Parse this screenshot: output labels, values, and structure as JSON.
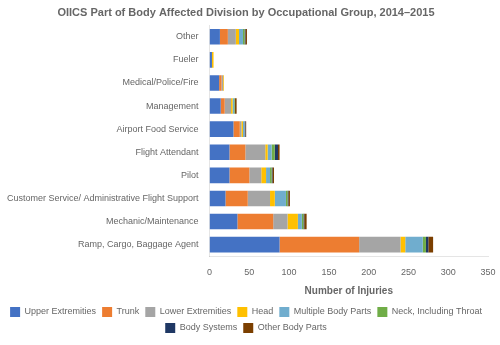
{
  "chart_data": {
    "type": "bar",
    "orientation": "horizontal",
    "stacked": true,
    "title": "OIICS Part of Body Affected Division by Occupational Group, 2014–2015",
    "xlabel": "Number of Injuries",
    "categories": [
      "Other",
      "Fueler",
      "Medical/Police/Fire",
      "Management",
      "Airport Food Service",
      "Flight Attendant",
      "Pilot",
      "Customer Service/ Administrative Flight Support",
      "Mechanic/Maintenance",
      "Ramp, Cargo, Baggage Agent"
    ],
    "series": [
      {
        "name": "Upper Extremities",
        "color": "#4472C4",
        "values": [
          13,
          3,
          12,
          14,
          30,
          25,
          25,
          20,
          35,
          88
        ]
      },
      {
        "name": "Trunk",
        "color": "#ED7D31",
        "values": [
          10,
          0,
          3,
          5,
          8,
          20,
          25,
          28,
          45,
          100
        ]
      },
      {
        "name": "Lower Extremities",
        "color": "#A5A5A5",
        "values": [
          10,
          0,
          2,
          8,
          2,
          25,
          15,
          28,
          18,
          52
        ]
      },
      {
        "name": "Head",
        "color": "#FFC000",
        "values": [
          4,
          2,
          1,
          2,
          2,
          3,
          6,
          6,
          13,
          6
        ]
      },
      {
        "name": "Multiple Body Parts",
        "color": "#70ADCE",
        "values": [
          5,
          0,
          0,
          2,
          2,
          5,
          5,
          14,
          5,
          22
        ]
      },
      {
        "name": "Neck, Including Throat",
        "color": "#70AD47",
        "values": [
          2,
          0,
          0,
          1,
          0,
          4,
          2,
          2,
          2,
          4
        ]
      },
      {
        "name": "Body Systems",
        "color": "#1F3864",
        "values": [
          1,
          0,
          0,
          0,
          1,
          4,
          1,
          1,
          1,
          3
        ]
      },
      {
        "name": "Other Body Parts",
        "color": "#7B3F00",
        "values": [
          2,
          0,
          0,
          2,
          1,
          2,
          2,
          2,
          3,
          6
        ]
      }
    ],
    "xlim": [
      0,
      350
    ],
    "xticks": [
      0,
      50,
      100,
      150,
      200,
      250,
      300,
      350
    ],
    "grid": false,
    "legend": "bottom"
  }
}
